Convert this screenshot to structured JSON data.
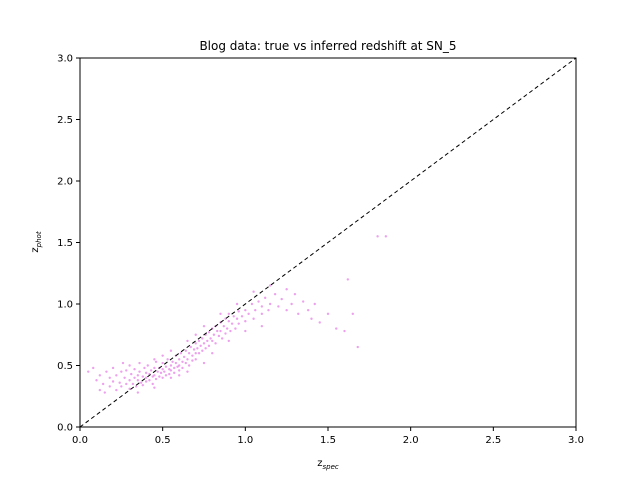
{
  "chart_data": {
    "type": "scatter",
    "title": "Blog data: true vs inferred redshift at SN_5",
    "xlabel_main": "z",
    "xlabel_sub": "spec",
    "ylabel_main": "z",
    "ylabel_sub": "phot",
    "xlim": [
      0.0,
      3.0
    ],
    "ylim": [
      0.0,
      3.0
    ],
    "xticks": [
      "0.0",
      "0.5",
      "1.0",
      "1.5",
      "2.0",
      "2.5",
      "3.0"
    ],
    "yticks": [
      "0.0",
      "0.5",
      "1.0",
      "1.5",
      "2.0",
      "2.5",
      "3.0"
    ],
    "reference_line": {
      "x": [
        0,
        3
      ],
      "y": [
        0,
        3
      ],
      "style": "dashed",
      "color": "#000000"
    },
    "point_color": "#d62fd6",
    "grid": false,
    "legend": "none",
    "series": [
      {
        "points": [
          [
            0.05,
            0.45
          ],
          [
            0.08,
            0.48
          ],
          [
            0.1,
            0.38
          ],
          [
            0.12,
            0.3
          ],
          [
            0.12,
            0.42
          ],
          [
            0.14,
            0.35
          ],
          [
            0.15,
            0.28
          ],
          [
            0.16,
            0.45
          ],
          [
            0.18,
            0.4
          ],
          [
            0.18,
            0.33
          ],
          [
            0.2,
            0.37
          ],
          [
            0.2,
            0.48
          ],
          [
            0.22,
            0.3
          ],
          [
            0.22,
            0.42
          ],
          [
            0.24,
            0.36
          ],
          [
            0.25,
            0.45
          ],
          [
            0.25,
            0.33
          ],
          [
            0.26,
            0.52
          ],
          [
            0.27,
            0.4
          ],
          [
            0.28,
            0.35
          ],
          [
            0.28,
            0.46
          ],
          [
            0.3,
            0.38
          ],
          [
            0.3,
            0.31
          ],
          [
            0.3,
            0.5
          ],
          [
            0.31,
            0.43
          ],
          [
            0.32,
            0.35
          ],
          [
            0.33,
            0.4
          ],
          [
            0.33,
            0.47
          ],
          [
            0.34,
            0.33
          ],
          [
            0.35,
            0.42
          ],
          [
            0.35,
            0.38
          ],
          [
            0.36,
            0.45
          ],
          [
            0.36,
            0.52
          ],
          [
            0.37,
            0.36
          ],
          [
            0.38,
            0.41
          ],
          [
            0.38,
            0.34
          ],
          [
            0.39,
            0.48
          ],
          [
            0.4,
            0.4
          ],
          [
            0.4,
            0.44
          ],
          [
            0.4,
            0.37
          ],
          [
            0.41,
            0.5
          ],
          [
            0.42,
            0.43
          ],
          [
            0.42,
            0.38
          ],
          [
            0.43,
            0.46
          ],
          [
            0.44,
            0.41
          ],
          [
            0.44,
            0.35
          ],
          [
            0.45,
            0.48
          ],
          [
            0.45,
            0.42
          ],
          [
            0.46,
            0.39
          ],
          [
            0.46,
            0.53
          ],
          [
            0.47,
            0.45
          ],
          [
            0.48,
            0.41
          ],
          [
            0.48,
            0.48
          ],
          [
            0.49,
            0.44
          ],
          [
            0.5,
            0.47
          ],
          [
            0.5,
            0.4
          ],
          [
            0.5,
            0.52
          ],
          [
            0.51,
            0.45
          ],
          [
            0.52,
            0.49
          ],
          [
            0.52,
            0.42
          ],
          [
            0.53,
            0.55
          ],
          [
            0.54,
            0.47
          ],
          [
            0.54,
            0.43
          ],
          [
            0.55,
            0.5
          ],
          [
            0.55,
            0.46
          ],
          [
            0.56,
            0.53
          ],
          [
            0.57,
            0.48
          ],
          [
            0.57,
            0.44
          ],
          [
            0.58,
            0.52
          ],
          [
            0.58,
            0.58
          ],
          [
            0.59,
            0.49
          ],
          [
            0.6,
            0.55
          ],
          [
            0.6,
            0.5
          ],
          [
            0.6,
            0.46
          ],
          [
            0.61,
            0.6
          ],
          [
            0.62,
            0.53
          ],
          [
            0.62,
            0.48
          ],
          [
            0.63,
            0.57
          ],
          [
            0.64,
            0.52
          ],
          [
            0.64,
            0.62
          ],
          [
            0.65,
            0.55
          ],
          [
            0.66,
            0.6
          ],
          [
            0.66,
            0.5
          ],
          [
            0.67,
            0.65
          ],
          [
            0.68,
            0.58
          ],
          [
            0.68,
            0.54
          ],
          [
            0.69,
            0.63
          ],
          [
            0.7,
            0.6
          ],
          [
            0.7,
            0.68
          ],
          [
            0.7,
            0.55
          ],
          [
            0.71,
            0.64
          ],
          [
            0.72,
            0.7
          ],
          [
            0.72,
            0.6
          ],
          [
            0.73,
            0.66
          ],
          [
            0.74,
            0.72
          ],
          [
            0.74,
            0.62
          ],
          [
            0.75,
            0.68
          ],
          [
            0.76,
            0.75
          ],
          [
            0.76,
            0.64
          ],
          [
            0.77,
            0.7
          ],
          [
            0.78,
            0.77
          ],
          [
            0.78,
            0.66
          ],
          [
            0.79,
            0.72
          ],
          [
            0.8,
            0.8
          ],
          [
            0.8,
            0.7
          ],
          [
            0.81,
            0.75
          ],
          [
            0.82,
            0.82
          ],
          [
            0.82,
            0.68
          ],
          [
            0.83,
            0.78
          ],
          [
            0.84,
            0.74
          ],
          [
            0.85,
            0.85
          ],
          [
            0.85,
            0.78
          ],
          [
            0.86,
            0.72
          ],
          [
            0.87,
            0.82
          ],
          [
            0.88,
            0.88
          ],
          [
            0.88,
            0.76
          ],
          [
            0.89,
            0.8
          ],
          [
            0.9,
            0.86
          ],
          [
            0.9,
            0.92
          ],
          [
            0.91,
            0.78
          ],
          [
            0.92,
            0.84
          ],
          [
            0.93,
            0.9
          ],
          [
            0.94,
            0.8
          ],
          [
            0.95,
            0.88
          ],
          [
            0.96,
            0.94
          ],
          [
            0.96,
            0.84
          ],
          [
            0.98,
            0.9
          ],
          [
            1.0,
            0.95
          ],
          [
            1.0,
            0.86
          ],
          [
            1.02,
            0.92
          ],
          [
            1.04,
            1.0
          ],
          [
            1.05,
            0.88
          ],
          [
            1.06,
            0.95
          ],
          [
            1.08,
            1.02
          ],
          [
            1.1,
            0.92
          ],
          [
            1.1,
            0.98
          ],
          [
            1.12,
            1.05
          ],
          [
            1.14,
            0.95
          ],
          [
            1.15,
            1.0
          ],
          [
            1.18,
            1.08
          ],
          [
            1.2,
            0.98
          ],
          [
            1.22,
            1.04
          ],
          [
            1.25,
            1.12
          ],
          [
            1.25,
            0.95
          ],
          [
            1.28,
            1.0
          ],
          [
            1.3,
            1.08
          ],
          [
            1.32,
            0.92
          ],
          [
            1.35,
            1.02
          ],
          [
            1.38,
            0.95
          ],
          [
            1.4,
            0.88
          ],
          [
            1.42,
            1.0
          ],
          [
            1.45,
            0.85
          ],
          [
            1.5,
            0.92
          ],
          [
            1.55,
            0.8
          ],
          [
            1.6,
            0.78
          ],
          [
            1.62,
            1.2
          ],
          [
            1.65,
            0.92
          ],
          [
            1.68,
            0.65
          ],
          [
            1.8,
            1.55
          ],
          [
            1.85,
            1.55
          ],
          [
            0.55,
            0.4
          ],
          [
            0.45,
            0.32
          ],
          [
            0.35,
            0.28
          ],
          [
            0.65,
            0.45
          ],
          [
            0.75,
            0.52
          ],
          [
            0.6,
            0.42
          ],
          [
            0.8,
            0.6
          ],
          [
            0.9,
            0.7
          ],
          [
            1.0,
            0.78
          ],
          [
            1.1,
            0.82
          ],
          [
            0.95,
            1.0
          ],
          [
            0.85,
            0.92
          ],
          [
            1.05,
            1.1
          ],
          [
            1.15,
            1.15
          ],
          [
            0.75,
            0.82
          ],
          [
            0.7,
            0.75
          ],
          [
            0.65,
            0.7
          ],
          [
            0.55,
            0.62
          ],
          [
            0.5,
            0.58
          ],
          [
            0.45,
            0.55
          ]
        ]
      }
    ]
  }
}
